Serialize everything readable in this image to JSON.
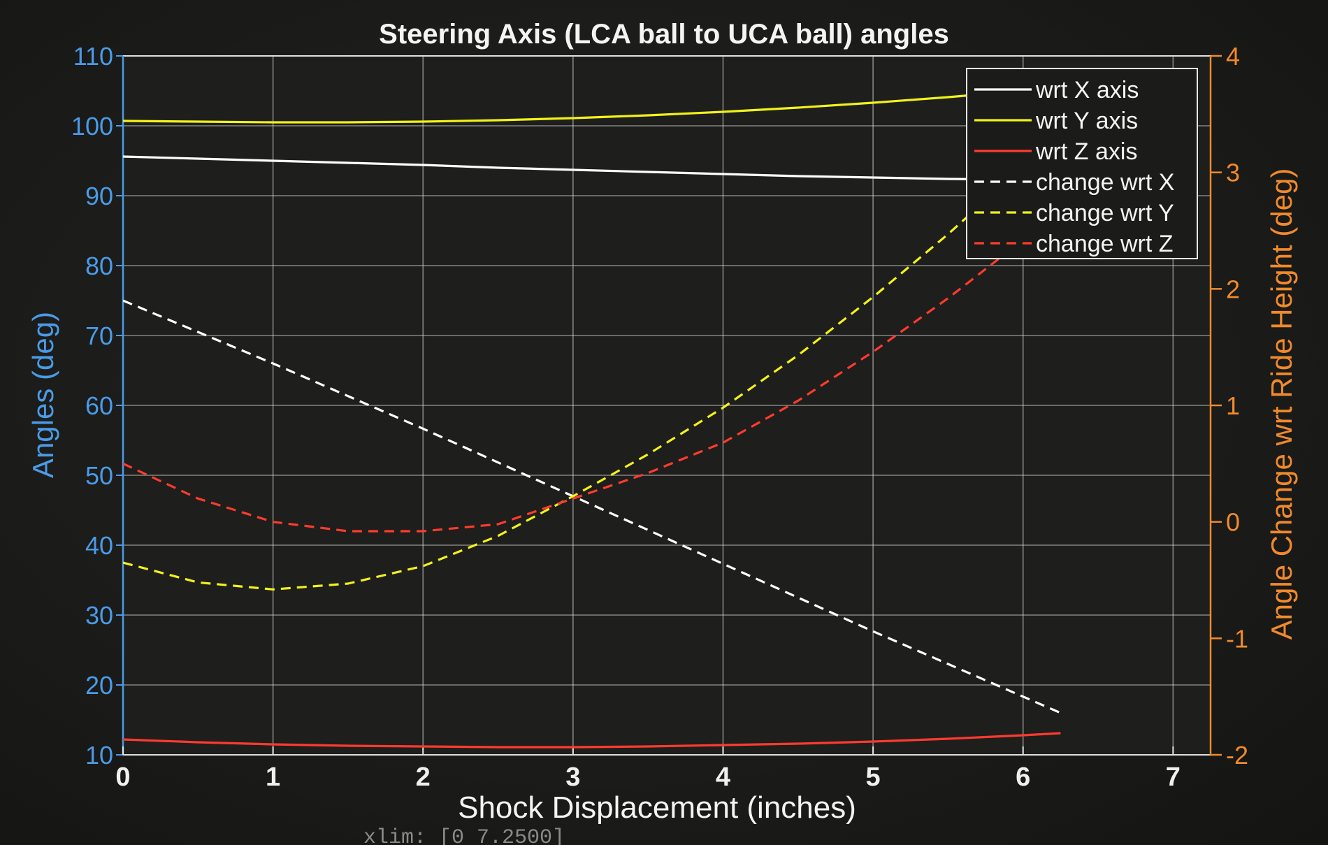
{
  "colors": {
    "background": "#1d1d1b",
    "left_axis": "#4a9be8",
    "right_axis": "#f08a2c",
    "grid": "#d8d8d8",
    "white": "#ffffff",
    "yellow": "#f2f21a",
    "red": "#ff3b2e",
    "text": "#f4f4f4"
  },
  "command_line": "xlim: [0 7.2500]",
  "chart_data": {
    "type": "line",
    "title": "Steering Axis (LCA ball to UCA ball) angles",
    "xlabel": "Shock Displacement (inches)",
    "ylabel_left": "Angles (deg)",
    "ylabel_right": "Angle Change wrt Ride Height (deg)",
    "xlim": [
      0,
      7.25
    ],
    "ylim_left": [
      10,
      110
    ],
    "ylim_right": [
      -2,
      4
    ],
    "x_ticks": [
      "0",
      "1",
      "2",
      "3",
      "4",
      "5",
      "6",
      "7"
    ],
    "y_ticks_left": [
      "10",
      "20",
      "30",
      "40",
      "50",
      "60",
      "70",
      "80",
      "90",
      "100",
      "110"
    ],
    "y_ticks_right": [
      "-2",
      "-1",
      "0",
      "1",
      "2",
      "3",
      "4"
    ],
    "grid": true,
    "legend_position": "top-right",
    "series": [
      {
        "name": "wrt X axis",
        "axis": "left",
        "color": "#ffffff",
        "style": "solid",
        "x": [
          0,
          0.5,
          1,
          1.5,
          2,
          2.5,
          3,
          3.5,
          4,
          4.5,
          5,
          5.5,
          6,
          6.25
        ],
        "y": [
          95.6,
          95.3,
          95.0,
          94.7,
          94.4,
          94.0,
          93.7,
          93.4,
          93.1,
          92.8,
          92.6,
          92.4,
          92.3,
          92.2
        ]
      },
      {
        "name": "wrt Y axis",
        "axis": "left",
        "color": "#f2f21a",
        "style": "solid",
        "x": [
          0,
          0.5,
          1,
          1.5,
          2,
          2.5,
          3,
          3.5,
          4,
          4.5,
          5,
          5.5,
          6,
          6.25
        ],
        "y": [
          100.7,
          100.6,
          100.5,
          100.5,
          100.6,
          100.8,
          101.1,
          101.5,
          102.0,
          102.6,
          103.3,
          104.1,
          105.0,
          105.5
        ]
      },
      {
        "name": "wrt Z axis",
        "axis": "left",
        "color": "#ff3b2e",
        "style": "solid",
        "x": [
          0,
          0.5,
          1,
          1.5,
          2,
          2.5,
          3,
          3.5,
          4,
          4.5,
          5,
          5.5,
          6,
          6.25
        ],
        "y": [
          12.2,
          11.8,
          11.5,
          11.3,
          11.2,
          11.1,
          11.1,
          11.2,
          11.4,
          11.6,
          11.9,
          12.3,
          12.8,
          13.1
        ]
      },
      {
        "name": "change wrt X",
        "axis": "right",
        "color": "#ffffff",
        "style": "dashed",
        "x": [
          0,
          0.5,
          1,
          1.5,
          2,
          2.5,
          3,
          3.5,
          4,
          4.5,
          5,
          5.5,
          6,
          6.25
        ],
        "y": [
          1.9,
          1.63,
          1.36,
          1.08,
          0.8,
          0.51,
          0.22,
          -0.07,
          -0.36,
          -0.65,
          -0.94,
          -1.22,
          -1.5,
          -1.64
        ]
      },
      {
        "name": "change wrt Y",
        "axis": "right",
        "color": "#f2f21a",
        "style": "dashed",
        "x": [
          0,
          0.5,
          1,
          1.5,
          2,
          2.5,
          3,
          3.5,
          4,
          4.5,
          5,
          5.5,
          6,
          6.25
        ],
        "y": [
          -0.35,
          -0.52,
          -0.58,
          -0.53,
          -0.38,
          -0.12,
          0.22,
          0.58,
          0.98,
          1.43,
          1.93,
          2.47,
          3.05,
          3.35
        ]
      },
      {
        "name": "change wrt Z",
        "axis": "right",
        "color": "#ff3b2e",
        "style": "dashed",
        "x": [
          0,
          0.5,
          1,
          1.5,
          2,
          2.5,
          3,
          3.5,
          4,
          4.5,
          5,
          5.5,
          6,
          6.25
        ],
        "y": [
          0.5,
          0.2,
          0.0,
          -0.08,
          -0.08,
          -0.02,
          0.2,
          0.42,
          0.68,
          1.04,
          1.46,
          1.92,
          2.42,
          2.68
        ]
      }
    ]
  }
}
